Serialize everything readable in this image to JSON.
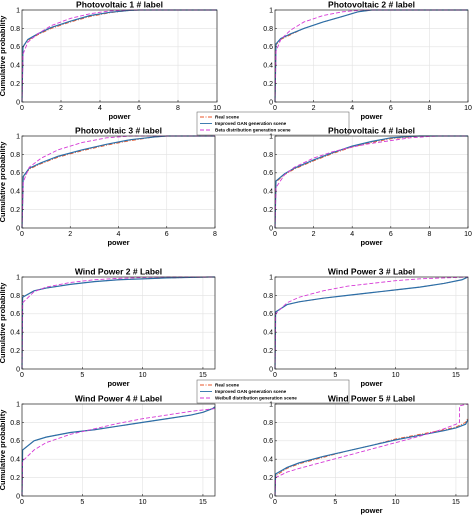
{
  "chart_data": [
    {
      "type": "line",
      "title": "Photovoltaic 1 # label",
      "xlabel": "power",
      "ylabel": "Cumulative probability",
      "xlim": [
        0,
        10
      ],
      "ylim": [
        0,
        1
      ],
      "xticks": [
        "0",
        "2",
        "4",
        "6",
        "8",
        "10"
      ],
      "yticks": [
        "0",
        "0.2",
        "0.4",
        "0.6",
        "0.8",
        "1"
      ],
      "grid": true,
      "series": [
        {
          "name": "Real scene",
          "color": "#e8552a",
          "dash": "dashdot",
          "x": [
            0,
            0.05,
            0.3,
            0.8,
            1.5,
            2.5,
            3.5,
            4.5,
            5.5,
            6,
            10
          ],
          "y": [
            0,
            0.6,
            0.67,
            0.73,
            0.8,
            0.87,
            0.93,
            0.97,
            0.995,
            1,
            1
          ]
        },
        {
          "name": "Improved GAN generation scene",
          "color": "#2b6fa8",
          "dash": "solid",
          "x": [
            0,
            0.05,
            0.3,
            0.8,
            1.5,
            2.5,
            3.5,
            4.5,
            5.5,
            6,
            10
          ],
          "y": [
            0,
            0.6,
            0.68,
            0.74,
            0.81,
            0.88,
            0.94,
            0.975,
            0.995,
            1,
            1
          ]
        },
        {
          "name": "Beta distribution generation scene",
          "color": "#d63ad6",
          "dash": "dashed",
          "x": [
            0,
            0.05,
            0.3,
            0.8,
            1.5,
            2.5,
            3.5,
            4.5,
            5.5,
            10
          ],
          "y": [
            0,
            0.52,
            0.65,
            0.74,
            0.83,
            0.91,
            0.96,
            0.99,
            1,
            1
          ]
        }
      ]
    },
    {
      "type": "line",
      "title": "Photovoltaic 2 # label",
      "xlabel": "power",
      "ylabel": "",
      "xlim": [
        0,
        10
      ],
      "ylim": [
        0,
        1
      ],
      "xticks": [
        "0",
        "2",
        "4",
        "6",
        "8",
        "10"
      ],
      "yticks": [
        "0",
        "0.2",
        "0.4",
        "0.6",
        "0.8",
        "1"
      ],
      "grid": true,
      "series": [
        {
          "name": "Real scene",
          "color": "#e8552a",
          "dash": "dashdot",
          "x": [
            0,
            0.05,
            0.3,
            0.8,
            1.5,
            2.5,
            3.5,
            4.3,
            5,
            10
          ],
          "y": [
            0,
            0.62,
            0.68,
            0.73,
            0.8,
            0.87,
            0.93,
            0.98,
            1,
            1
          ]
        },
        {
          "name": "Improved GAN generation scene",
          "color": "#2b6fa8",
          "dash": "solid",
          "x": [
            0,
            0.05,
            0.3,
            0.8,
            1.5,
            2.5,
            3.5,
            4.3,
            5,
            10
          ],
          "y": [
            0,
            0.63,
            0.69,
            0.74,
            0.8,
            0.87,
            0.93,
            0.98,
            1,
            1
          ]
        },
        {
          "name": "Beta distribution generation scene",
          "color": "#d63ad6",
          "dash": "dashed",
          "x": [
            0,
            0.05,
            0.3,
            0.8,
            1.5,
            2.5,
            3.5,
            4.5,
            10
          ],
          "y": [
            0,
            0.55,
            0.68,
            0.78,
            0.87,
            0.94,
            0.98,
            1,
            1
          ]
        }
      ]
    },
    {
      "type": "line",
      "title": "Photovoltaic 3 # label",
      "xlabel": "power",
      "ylabel": "Cumulative probability",
      "xlim": [
        0,
        8
      ],
      "ylim": [
        0,
        1
      ],
      "xticks": [
        "0",
        "2",
        "4",
        "6",
        "8"
      ],
      "yticks": [
        "0",
        "0.2",
        "0.4",
        "0.6",
        "0.8",
        "1"
      ],
      "grid": true,
      "legend": {
        "position": "top-right",
        "entries": [
          "Real scene",
          "Improved GAN generation scene",
          "Beta distribution generation scene"
        ]
      },
      "series": [
        {
          "name": "Real scene",
          "color": "#e8552a",
          "dash": "dashdot",
          "x": [
            0,
            0.05,
            0.3,
            0.8,
            1.5,
            2.5,
            3.5,
            4.5,
            5.5,
            6,
            8
          ],
          "y": [
            0,
            0.55,
            0.64,
            0.7,
            0.77,
            0.84,
            0.9,
            0.95,
            0.99,
            1,
            1
          ]
        },
        {
          "name": "Improved GAN generation scene",
          "color": "#2b6fa8",
          "dash": "solid",
          "x": [
            0,
            0.05,
            0.3,
            0.8,
            1.5,
            2.5,
            3.5,
            4.5,
            5.5,
            6,
            8
          ],
          "y": [
            0,
            0.56,
            0.65,
            0.71,
            0.78,
            0.85,
            0.91,
            0.96,
            0.99,
            1,
            1
          ]
        },
        {
          "name": "Beta distribution generation scene",
          "color": "#d63ad6",
          "dash": "dashed",
          "x": [
            0,
            0.05,
            0.3,
            0.8,
            1.5,
            2.5,
            3.5,
            4.5,
            8
          ],
          "y": [
            0,
            0.5,
            0.66,
            0.76,
            0.85,
            0.93,
            0.98,
            1,
            1
          ]
        }
      ]
    },
    {
      "type": "line",
      "title": "Photovoltaic 4 # label",
      "xlabel": "power",
      "ylabel": "",
      "xlim": [
        0,
        10
      ],
      "ylim": [
        0,
        1
      ],
      "xticks": [
        "0",
        "2",
        "4",
        "6",
        "8",
        "10"
      ],
      "yticks": [
        "0",
        "0.2",
        "0.4",
        "0.6",
        "0.8",
        "1"
      ],
      "grid": true,
      "series": [
        {
          "name": "Real scene",
          "color": "#e8552a",
          "dash": "dashdot",
          "x": [
            0,
            0.05,
            0.5,
            1,
            2,
            3,
            4,
            5,
            6,
            7,
            7.5,
            10
          ],
          "y": [
            0,
            0.5,
            0.58,
            0.64,
            0.73,
            0.81,
            0.88,
            0.93,
            0.97,
            0.99,
            1,
            1
          ]
        },
        {
          "name": "Improved GAN generation scene",
          "color": "#2b6fa8",
          "dash": "solid",
          "x": [
            0,
            0.05,
            0.5,
            1,
            2,
            3,
            4,
            5,
            6,
            7,
            7.5,
            10
          ],
          "y": [
            0,
            0.51,
            0.59,
            0.65,
            0.74,
            0.82,
            0.89,
            0.94,
            0.98,
            0.995,
            1,
            1
          ]
        },
        {
          "name": "Beta distribution generation scene",
          "color": "#d63ad6",
          "dash": "dashed",
          "x": [
            0,
            0.05,
            0.5,
            1,
            2,
            3,
            4,
            5,
            6,
            7,
            8,
            8.5,
            10
          ],
          "y": [
            0,
            0.44,
            0.58,
            0.66,
            0.76,
            0.83,
            0.88,
            0.92,
            0.95,
            0.98,
            0.995,
            1,
            1
          ]
        }
      ]
    },
    {
      "type": "line",
      "title": "Wind Power 2 # Label",
      "xlabel": "power",
      "ylabel": "Cumulative probability",
      "xlim": [
        0,
        16
      ],
      "ylim": [
        0,
        1
      ],
      "xticks": [
        "0",
        "5",
        "10",
        "15"
      ],
      "yticks": [
        "0",
        "0.2",
        "0.4",
        "0.6",
        "0.8",
        "1"
      ],
      "grid": true,
      "series": [
        {
          "name": "Real scene",
          "color": "#e8552a",
          "dash": "dashdot",
          "x": [
            0,
            0.05,
            1,
            2,
            4,
            6,
            8,
            10,
            12,
            14,
            15.5,
            16
          ],
          "y": [
            0,
            0.78,
            0.85,
            0.88,
            0.92,
            0.95,
            0.97,
            0.98,
            0.99,
            0.995,
            1,
            1
          ]
        },
        {
          "name": "Improved GAN generation scene",
          "color": "#2b6fa8",
          "dash": "solid",
          "x": [
            0,
            0.05,
            1,
            2,
            4,
            6,
            8,
            10,
            12,
            14,
            15.5,
            16
          ],
          "y": [
            0,
            0.78,
            0.85,
            0.88,
            0.92,
            0.95,
            0.97,
            0.98,
            0.99,
            0.995,
            1,
            1
          ]
        },
        {
          "name": "Weibull distribution generation scene",
          "color": "#d63ad6",
          "dash": "dashed",
          "x": [
            0,
            0.05,
            1,
            2,
            4,
            6,
            8,
            10,
            12,
            14,
            16
          ],
          "y": [
            0,
            0.72,
            0.84,
            0.89,
            0.94,
            0.97,
            0.985,
            0.995,
            1,
            1,
            1
          ]
        }
      ]
    },
    {
      "type": "line",
      "title": "Wind Power 3 # Label",
      "xlabel": "power",
      "ylabel": "",
      "xlim": [
        0,
        16
      ],
      "ylim": [
        0,
        1
      ],
      "xticks": [
        "0",
        "5",
        "10",
        "15"
      ],
      "yticks": [
        "0",
        "0.2",
        "0.4",
        "0.6",
        "0.8",
        "1"
      ],
      "grid": true,
      "series": [
        {
          "name": "Real scene",
          "color": "#e8552a",
          "dash": "dashdot",
          "x": [
            0,
            0.05,
            1,
            2,
            4,
            6,
            8,
            10,
            12,
            14,
            15.5,
            16
          ],
          "y": [
            0,
            0.62,
            0.7,
            0.73,
            0.77,
            0.8,
            0.83,
            0.86,
            0.89,
            0.93,
            0.97,
            1
          ]
        },
        {
          "name": "Improved GAN generation scene",
          "color": "#2b6fa8",
          "dash": "solid",
          "x": [
            0,
            0.05,
            1,
            2,
            4,
            6,
            8,
            10,
            12,
            14,
            15.5,
            16
          ],
          "y": [
            0,
            0.62,
            0.7,
            0.73,
            0.77,
            0.8,
            0.83,
            0.86,
            0.89,
            0.93,
            0.97,
            1
          ]
        },
        {
          "name": "Weibull distribution generation scene",
          "color": "#d63ad6",
          "dash": "dashed",
          "x": [
            0,
            0.05,
            1,
            2,
            4,
            6,
            8,
            10,
            12,
            14,
            16
          ],
          "y": [
            0,
            0.6,
            0.72,
            0.78,
            0.85,
            0.9,
            0.93,
            0.96,
            0.98,
            0.99,
            1
          ]
        }
      ]
    },
    {
      "type": "line",
      "title": "Wind Power 4 # Label",
      "xlabel": "",
      "ylabel": "Cumulative probability",
      "xlim": [
        0,
        16
      ],
      "ylim": [
        0,
        1
      ],
      "xticks": [
        "0",
        "5",
        "10",
        "15"
      ],
      "yticks": [
        "0",
        "0.2",
        "0.4",
        "0.6",
        "0.8",
        "1"
      ],
      "grid": true,
      "legend": {
        "position": "top-right",
        "entries": [
          "Real scene",
          "Improved GAN generation scene",
          "Weibull distribution generation scene"
        ]
      },
      "series": [
        {
          "name": "Real scene",
          "color": "#e8552a",
          "dash": "dashdot",
          "x": [
            0,
            0.05,
            1,
            2,
            4,
            6,
            8,
            10,
            12,
            14,
            15,
            15.8,
            16
          ],
          "y": [
            0,
            0.5,
            0.6,
            0.64,
            0.69,
            0.72,
            0.76,
            0.8,
            0.84,
            0.88,
            0.91,
            0.95,
            0.97
          ]
        },
        {
          "name": "Improved GAN generation scene",
          "color": "#2b6fa8",
          "dash": "solid",
          "x": [
            0,
            0.05,
            1,
            2,
            4,
            6,
            8,
            10,
            12,
            14,
            15,
            15.8,
            16
          ],
          "y": [
            0,
            0.5,
            0.6,
            0.64,
            0.69,
            0.72,
            0.76,
            0.8,
            0.84,
            0.88,
            0.91,
            0.95,
            0.97
          ]
        },
        {
          "name": "Weibull distribution generation scene",
          "color": "#d63ad6",
          "dash": "dashed",
          "x": [
            0,
            0.05,
            1,
            2,
            4,
            6,
            8,
            10,
            12,
            14,
            16
          ],
          "y": [
            0,
            0.38,
            0.5,
            0.58,
            0.67,
            0.73,
            0.79,
            0.84,
            0.88,
            0.92,
            0.95
          ]
        }
      ]
    },
    {
      "type": "line",
      "title": "Wind Power 5 # Label",
      "xlabel": "power",
      "ylabel": "",
      "xlim": [
        0,
        16
      ],
      "ylim": [
        0,
        1
      ],
      "xticks": [
        "0",
        "5",
        "10",
        "15"
      ],
      "yticks": [
        "0",
        "0.2",
        "0.4",
        "0.6",
        "0.8",
        "1"
      ],
      "grid": true,
      "series": [
        {
          "name": "Real scene",
          "color": "#e8552a",
          "dash": "dashdot",
          "x": [
            0,
            0.05,
            1,
            2,
            4,
            6,
            8,
            10,
            12,
            14,
            15,
            15.8,
            16
          ],
          "y": [
            0,
            0.22,
            0.3,
            0.35,
            0.42,
            0.49,
            0.55,
            0.62,
            0.67,
            0.72,
            0.75,
            0.8,
            0.85
          ]
        },
        {
          "name": "Improved GAN generation scene",
          "color": "#2b6fa8",
          "dash": "solid",
          "x": [
            0,
            0.05,
            1,
            2,
            4,
            6,
            8,
            10,
            12,
            14,
            15,
            15.8,
            16
          ],
          "y": [
            0,
            0.24,
            0.31,
            0.36,
            0.43,
            0.49,
            0.55,
            0.61,
            0.66,
            0.71,
            0.74,
            0.78,
            0.83
          ]
        },
        {
          "name": "Weibull distribution generation scene",
          "color": "#d63ad6",
          "dash": "dashed",
          "x": [
            0,
            0.05,
            1,
            2,
            4,
            6,
            8,
            10,
            12,
            14,
            15,
            15.3,
            15.3,
            16
          ],
          "y": [
            0,
            0.2,
            0.26,
            0.3,
            0.37,
            0.44,
            0.51,
            0.58,
            0.65,
            0.73,
            0.78,
            0.8,
            0.98,
            1
          ]
        }
      ]
    }
  ]
}
